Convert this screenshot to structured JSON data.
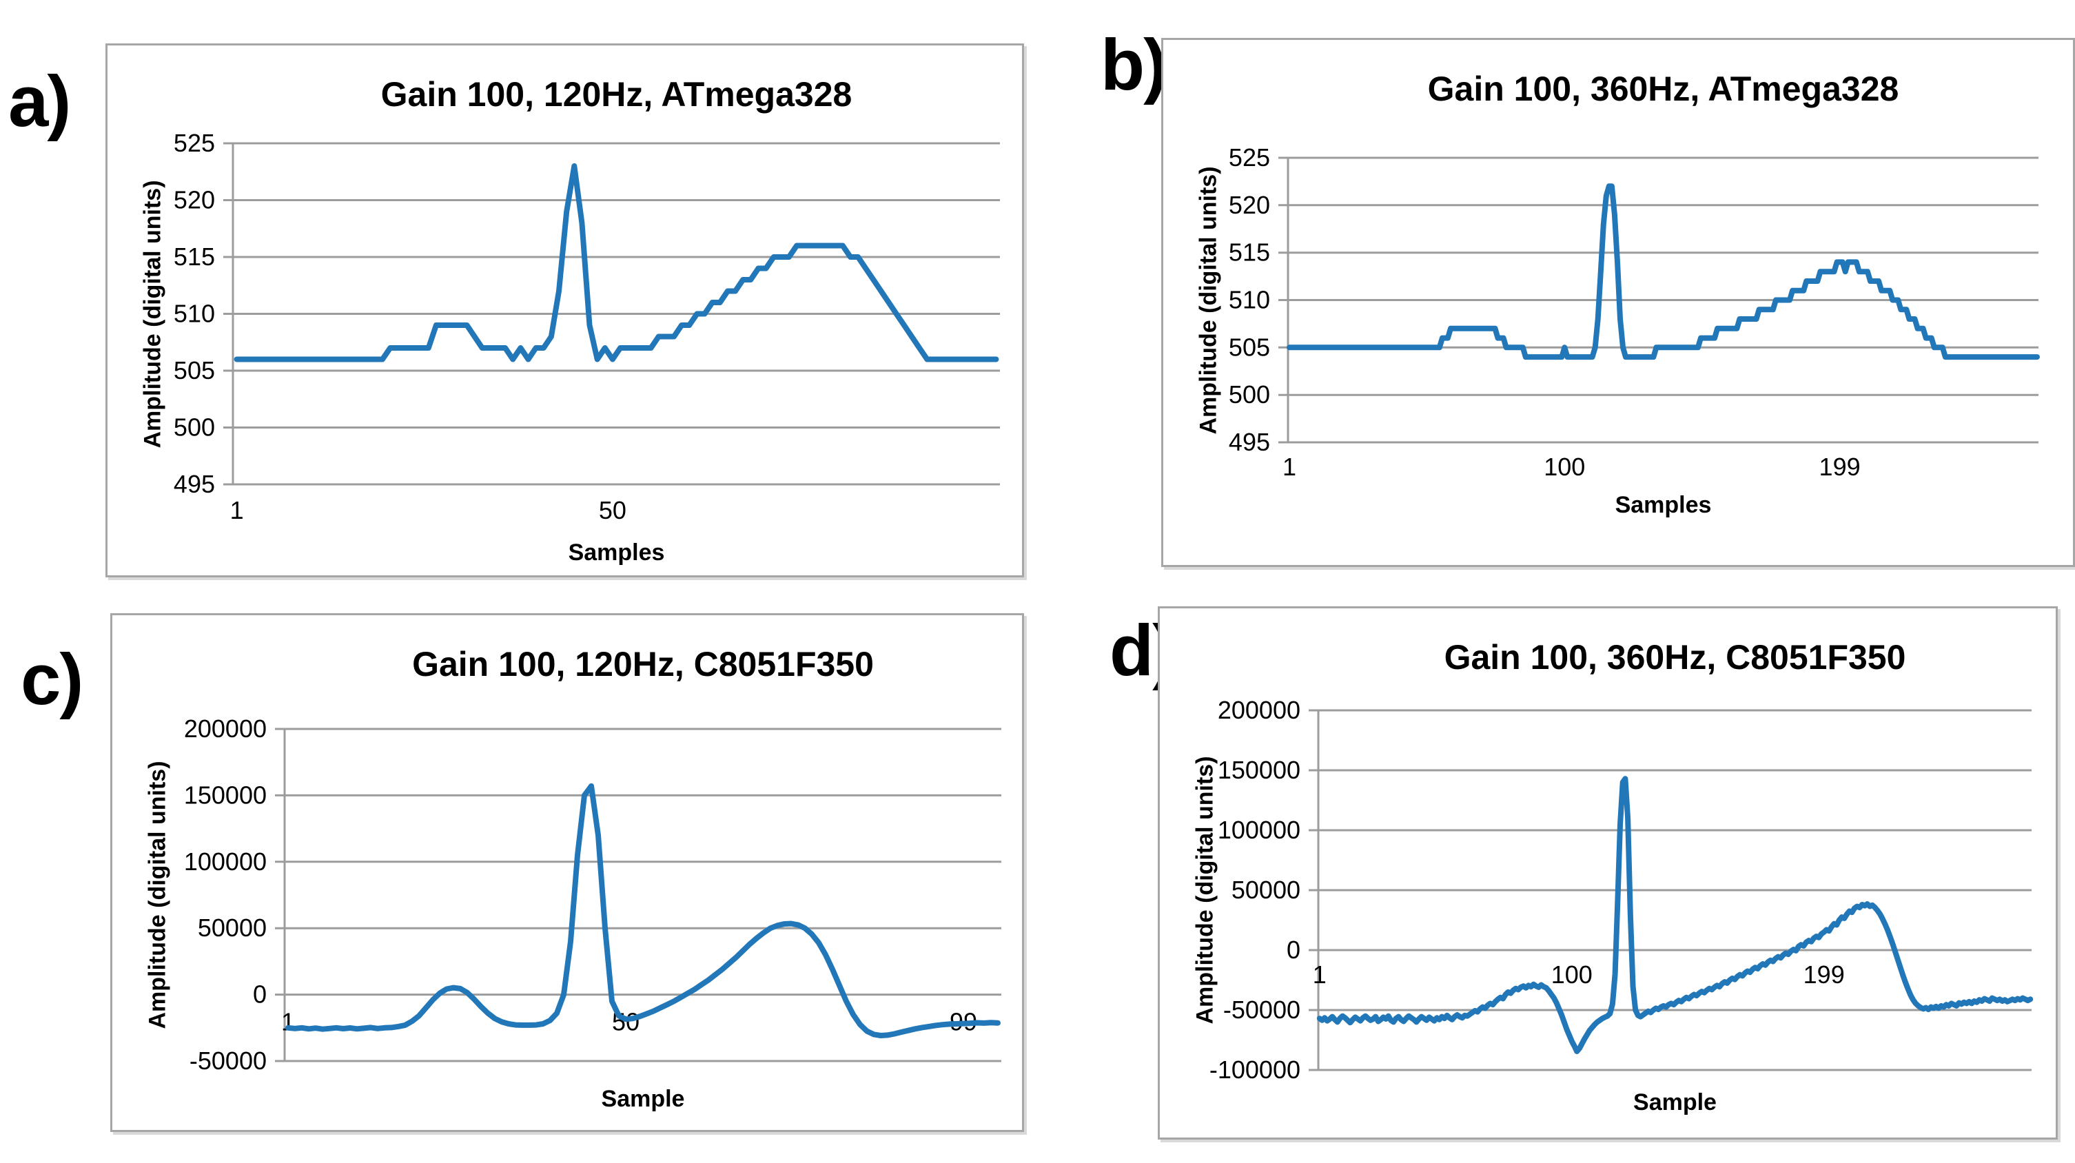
{
  "colors": {
    "line": "#2177B8",
    "grid": "#9c9c9c",
    "border": "#a6a6a6",
    "text": "#000000",
    "background": "#ffffff"
  },
  "chart_data": [
    {
      "type": "line",
      "panel_label": "a)",
      "title": "Gain 100, 120Hz, ATmega328",
      "xlabel": "Samples",
      "ylabel": "Amplitude (digital units)",
      "ylim": [
        495,
        525
      ],
      "yticks": [
        495,
        500,
        505,
        510,
        515,
        520,
        525
      ],
      "xticks": [
        1,
        50
      ],
      "grid": "horizontal",
      "legend": "none",
      "values_rle": [
        [
          506,
          20
        ],
        [
          507,
          6
        ],
        [
          509,
          5
        ],
        [
          508,
          1
        ],
        [
          507,
          4
        ],
        [
          506,
          1
        ],
        [
          507,
          1
        ],
        [
          506,
          1
        ],
        [
          507,
          2
        ],
        [
          508,
          1
        ],
        [
          512,
          1
        ],
        [
          519,
          1
        ],
        [
          523,
          1
        ],
        [
          518,
          1
        ],
        [
          509,
          1
        ],
        [
          506,
          1
        ],
        [
          507,
          1
        ],
        [
          506,
          1
        ],
        [
          507,
          5
        ],
        [
          508,
          3
        ],
        [
          509,
          2
        ],
        [
          510,
          2
        ],
        [
          511,
          2
        ],
        [
          512,
          2
        ],
        [
          513,
          2
        ],
        [
          514,
          2
        ],
        [
          515,
          3
        ],
        [
          516,
          7
        ],
        [
          515,
          2
        ],
        [
          514,
          1
        ],
        [
          513,
          1
        ],
        [
          512,
          1
        ],
        [
          511,
          1
        ],
        [
          510,
          1
        ],
        [
          509,
          1
        ],
        [
          508,
          1
        ],
        [
          507,
          1
        ],
        [
          506,
          10
        ]
      ]
    },
    {
      "type": "line",
      "panel_label": "b)",
      "title": "Gain 100, 360Hz, ATmega328",
      "xlabel": "Samples",
      "ylabel": "Amplitude (digital units)",
      "ylim": [
        495,
        525
      ],
      "yticks": [
        495,
        500,
        505,
        510,
        515,
        520,
        525
      ],
      "xticks": [
        1,
        100,
        199
      ],
      "grid": "horizontal",
      "legend": "none",
      "values_rle": [
        [
          505,
          55
        ],
        [
          506,
          3
        ],
        [
          507,
          17
        ],
        [
          506,
          3
        ],
        [
          505,
          7
        ],
        [
          504,
          14
        ],
        [
          505,
          1
        ],
        [
          504,
          10
        ],
        [
          505,
          1
        ],
        [
          508,
          1
        ],
        [
          513,
          1
        ],
        [
          518,
          1
        ],
        [
          521,
          1
        ],
        [
          522,
          2
        ],
        [
          519,
          1
        ],
        [
          514,
          1
        ],
        [
          508,
          1
        ],
        [
          505,
          1
        ],
        [
          504,
          11
        ],
        [
          505,
          16
        ],
        [
          506,
          6
        ],
        [
          507,
          8
        ],
        [
          508,
          7
        ],
        [
          509,
          6
        ],
        [
          510,
          6
        ],
        [
          511,
          5
        ],
        [
          512,
          5
        ],
        [
          513,
          6
        ],
        [
          514,
          3
        ],
        [
          513,
          1
        ],
        [
          514,
          4
        ],
        [
          513,
          4
        ],
        [
          512,
          4
        ],
        [
          511,
          4
        ],
        [
          510,
          3
        ],
        [
          509,
          3
        ],
        [
          508,
          3
        ],
        [
          507,
          3
        ],
        [
          506,
          3
        ],
        [
          505,
          4
        ],
        [
          504,
          34
        ]
      ]
    },
    {
      "type": "line",
      "panel_label": "c)",
      "title": "Gain 100, 120Hz, C8051F350",
      "xlabel": "Sample",
      "ylabel": "Amplitude (digital units)",
      "ylim": [
        -50000,
        200000
      ],
      "yticks": [
        -50000,
        0,
        50000,
        100000,
        150000,
        200000
      ],
      "xticks": [
        1,
        50,
        99
      ],
      "grid": "horizontal",
      "legend": "none",
      "values": [
        -25000,
        -25500,
        -25000,
        -25800,
        -25200,
        -26000,
        -25500,
        -25000,
        -25600,
        -25100,
        -25800,
        -25300,
        -24800,
        -25500,
        -25000,
        -24800,
        -24000,
        -23000,
        -20000,
        -16000,
        -10000,
        -4000,
        1000,
        4200,
        5200,
        4500,
        1500,
        -3500,
        -9000,
        -14000,
        -18000,
        -20500,
        -22000,
        -22800,
        -23000,
        -23000,
        -22800,
        -22000,
        -19500,
        -14000,
        0,
        40000,
        105000,
        150000,
        157000,
        120000,
        50000,
        -5000,
        -16000,
        -18500,
        -18000,
        -16500,
        -14500,
        -12500,
        -10000,
        -7500,
        -5000,
        -2000,
        1000,
        4000,
        7500,
        11000,
        15000,
        19000,
        23500,
        28000,
        33000,
        38000,
        42500,
        46500,
        50000,
        52000,
        53200,
        53500,
        52500,
        50000,
        45500,
        39000,
        30000,
        19000,
        7000,
        -5000,
        -15000,
        -22500,
        -27500,
        -30000,
        -30800,
        -30500,
        -29500,
        -28200,
        -27000,
        -25800,
        -24800,
        -24000,
        -23200,
        -22600,
        -22200,
        -22000,
        -21800,
        -21500,
        -21200,
        -21400,
        -21100,
        -21300
      ]
    },
    {
      "type": "line",
      "panel_label": "d)",
      "title": "Gain 100, 360Hz, C8051F350",
      "xlabel": "Sample",
      "ylabel": "Amplitude (digital units)",
      "ylim": [
        -100000,
        200000
      ],
      "yticks": [
        -100000,
        -50000,
        0,
        50000,
        100000,
        150000,
        200000
      ],
      "xticks": [
        1,
        100,
        199
      ],
      "grid": "horizontal",
      "legend": "none",
      "values": [
        -57000,
        -58500,
        -56500,
        -59000,
        -57500,
        -55500,
        -58000,
        -60000,
        -57000,
        -55000,
        -56500,
        -58500,
        -60500,
        -58000,
        -56000,
        -57500,
        -59000,
        -56500,
        -55000,
        -57000,
        -58500,
        -57500,
        -55500,
        -59500,
        -58000,
        -56000,
        -57500,
        -55000,
        -58500,
        -60000,
        -57000,
        -55500,
        -58000,
        -59500,
        -57000,
        -55000,
        -56500,
        -58000,
        -60000,
        -57500,
        -55500,
        -57000,
        -58500,
        -56000,
        -57500,
        -59000,
        -56500,
        -58000,
        -55500,
        -57000,
        -54500,
        -56500,
        -58000,
        -55500,
        -54000,
        -55500,
        -56500,
        -54500,
        -55000,
        -53500,
        -52000,
        -50500,
        -51500,
        -49000,
        -47500,
        -48500,
        -46000,
        -44500,
        -45500,
        -43000,
        -41000,
        -39500,
        -40500,
        -37000,
        -35000,
        -36000,
        -33500,
        -32000,
        -33000,
        -31000,
        -30000,
        -31500,
        -29500,
        -30500,
        -28500,
        -30000,
        -31000,
        -29000,
        -30500,
        -31500,
        -34000,
        -37000,
        -40000,
        -44000,
        -49000,
        -54000,
        -60000,
        -66000,
        -71000,
        -76000,
        -80000,
        -84500,
        -82000,
        -78000,
        -74000,
        -70500,
        -67000,
        -64500,
        -62000,
        -60000,
        -58500,
        -57000,
        -56000,
        -55000,
        -53000,
        -45000,
        -20000,
        40000,
        105000,
        140000,
        143000,
        110000,
        30000,
        -30000,
        -50000,
        -54500,
        -55500,
        -54000,
        -52500,
        -51000,
        -52000,
        -50000,
        -48500,
        -49500,
        -47500,
        -46500,
        -47500,
        -45500,
        -44500,
        -45500,
        -43500,
        -42000,
        -43000,
        -41000,
        -39500,
        -40500,
        -38500,
        -37000,
        -38000,
        -36000,
        -34500,
        -35500,
        -33500,
        -32000,
        -33000,
        -31000,
        -29500,
        -30500,
        -28000,
        -26500,
        -27500,
        -25000,
        -23500,
        -24500,
        -22000,
        -20500,
        -21500,
        -19000,
        -17500,
        -18500,
        -16000,
        -14500,
        -15500,
        -13000,
        -11500,
        -12500,
        -10000,
        -8500,
        -9500,
        -7000,
        -5500,
        -6500,
        -4000,
        -2500,
        -3500,
        -1000,
        500,
        -500,
        3000,
        4500,
        3500,
        6500,
        8000,
        7000,
        10000,
        11500,
        10500,
        13500,
        15000,
        17000,
        16000,
        19500,
        22000,
        21000,
        25000,
        27500,
        26500,
        30000,
        32500,
        31500,
        35000,
        36500,
        35500,
        38000,
        37000,
        38500,
        36500,
        37500,
        35500,
        33000,
        30000,
        26000,
        21500,
        16500,
        11000,
        5000,
        -1500,
        -8000,
        -14500,
        -21000,
        -27000,
        -32500,
        -37500,
        -41500,
        -44500,
        -46500,
        -48000,
        -49000,
        -48000,
        -49500,
        -47500,
        -48500,
        -47000,
        -48500,
        -46500,
        -47500,
        -45500,
        -46500,
        -44500,
        -45500,
        -46500,
        -44000,
        -45000,
        -43500,
        -44500,
        -43000,
        -44500,
        -42500,
        -43500,
        -41500,
        -42500,
        -40500,
        -41500,
        -42500,
        -40000,
        -41000,
        -42000,
        -41000,
        -42500,
        -41500,
        -43000,
        -42000,
        -41000,
        -42000,
        -40500,
        -41500,
        -40000,
        -41000,
        -42000,
        -41000
      ]
    }
  ]
}
